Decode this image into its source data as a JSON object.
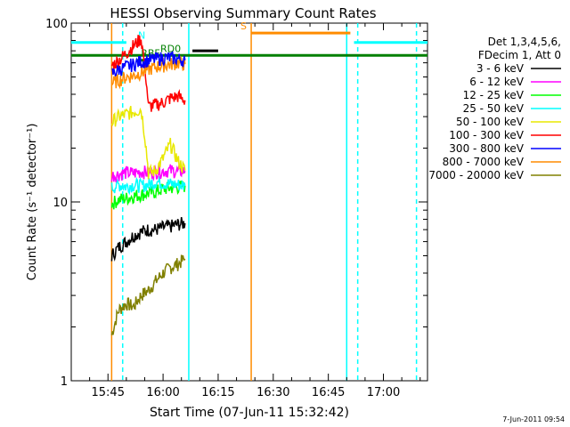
{
  "chart_data": {
    "type": "line",
    "title": "HESSI Observing Summary Count Rates",
    "xlabel": "Start Time (07-Jun-11 15:32:42)",
    "ylabel": "Count Rate (s⁻¹ detector⁻¹)",
    "yscale": "log",
    "ylim": [
      1,
      100
    ],
    "xlim": [
      "15:35",
      "17:12"
    ],
    "x_ticks": [
      "15:45",
      "16:00",
      "16:15",
      "16:30",
      "16:45",
      "17:00"
    ],
    "y_ticks": [
      "1",
      "10",
      "100"
    ],
    "grid": false,
    "legend_position": "right",
    "legend": {
      "header1": "Det 1,3,4,5,6,",
      "header2": "FDecim 1, Att 0",
      "entries": [
        {
          "label": "3 - 6 keV",
          "color": "#000000"
        },
        {
          "label": "6 - 12 keV",
          "color": "#ff00ff"
        },
        {
          "label": "12 - 25 keV",
          "color": "#00ff00"
        },
        {
          "label": "25 - 50 keV",
          "color": "#00ffff"
        },
        {
          "label": "50 - 100 keV",
          "color": "#e8e800"
        },
        {
          "label": "100 - 300 keV",
          "color": "#ff0000"
        },
        {
          "label": "300 - 800 keV",
          "color": "#0000ff"
        },
        {
          "label": "800 - 7000 keV",
          "color": "#ff8c00"
        },
        {
          "label": "7000 - 20000 keV",
          "color": "#808000"
        }
      ]
    },
    "series": [
      {
        "name": "7000 - 20000 keV",
        "color": "#808000",
        "x": [
          "15:46",
          "15:48",
          "15:50",
          "15:52",
          "15:54",
          "15:56",
          "15:58",
          "16:00",
          "16:02",
          "16:04",
          "16:06"
        ],
        "y": [
          1.8,
          2.5,
          2.7,
          2.6,
          3.0,
          3.2,
          3.6,
          4.0,
          4.3,
          4.5,
          4.8
        ]
      },
      {
        "name": "3 - 6 keV",
        "color": "#000000",
        "x": [
          "15:46",
          "15:48",
          "15:50",
          "15:52",
          "15:54",
          "15:56",
          "15:58",
          "16:00",
          "16:02",
          "16:04",
          "16:06"
        ],
        "y": [
          5.0,
          5.6,
          6.0,
          6.5,
          6.8,
          7.0,
          7.0,
          7.2,
          7.3,
          7.5,
          7.6
        ]
      },
      {
        "name": "12 - 25 keV",
        "color": "#00ff00",
        "x": [
          "15:46",
          "15:48",
          "15:50",
          "15:52",
          "15:54",
          "15:56",
          "15:58",
          "16:00",
          "16:02",
          "16:04",
          "16:06"
        ],
        "y": [
          9.8,
          10.3,
          10.5,
          10.8,
          11.0,
          11.2,
          11.4,
          11.8,
          12.0,
          12.1,
          12.3
        ]
      },
      {
        "name": "25 - 50 keV",
        "color": "#00ffff",
        "x": [
          "15:46",
          "15:48",
          "15:50",
          "15:52",
          "15:54",
          "15:56",
          "15:58",
          "16:00",
          "16:02",
          "16:04",
          "16:06"
        ],
        "y": [
          12.0,
          12.5,
          12.2,
          12.5,
          12.3,
          12.5,
          13.0,
          12.8,
          12.6,
          12.5,
          12.3
        ]
      },
      {
        "name": "6 - 12 keV",
        "color": "#ff00ff",
        "x": [
          "15:46",
          "15:48",
          "15:50",
          "15:52",
          "15:54",
          "15:56",
          "15:58",
          "16:00",
          "16:02",
          "16:04",
          "16:06"
        ],
        "y": [
          14.0,
          14.3,
          14.6,
          14.5,
          14.8,
          14.6,
          14.8,
          14.9,
          15.0,
          14.8,
          14.9
        ]
      },
      {
        "name": "50 - 100 keV",
        "color": "#e8e800",
        "x": [
          "15:46",
          "15:48",
          "15:50",
          "15:52",
          "15:54",
          "15:56",
          "15:58",
          "16:00",
          "16:02",
          "16:04",
          "16:06"
        ],
        "y": [
          28,
          30,
          31,
          32,
          33,
          14.5,
          15.0,
          17.5,
          21.0,
          17.0,
          15.0
        ]
      },
      {
        "name": "100 - 300 keV",
        "color": "#ff0000",
        "x": [
          "15:46",
          "15:48",
          "15:50",
          "15:52",
          "15:54",
          "15:56",
          "15:58",
          "16:00",
          "16:02",
          "16:04",
          "16:06"
        ],
        "y": [
          58,
          62,
          68,
          75,
          82,
          34,
          35,
          36,
          38,
          39,
          37
        ]
      },
      {
        "name": "800 - 7000 keV",
        "color": "#ff8c00",
        "x": [
          "15:46",
          "15:48",
          "15:50",
          "15:52",
          "15:54",
          "15:56",
          "15:58",
          "16:00",
          "16:02",
          "16:04",
          "16:06"
        ],
        "y": [
          46,
          48,
          50,
          51,
          53,
          55,
          57,
          58,
          59,
          60,
          59
        ]
      },
      {
        "name": "300 - 800 keV",
        "color": "#0000ff",
        "x": [
          "15:46",
          "15:48",
          "15:50",
          "15:52",
          "15:54",
          "15:56",
          "15:58",
          "16:00",
          "16:02",
          "16:04",
          "16:06"
        ],
        "y": [
          52,
          55,
          57,
          59,
          61,
          62,
          63,
          64,
          64,
          63,
          62
        ]
      }
    ],
    "flags": [
      {
        "label": "RD0",
        "color": "#008000",
        "x_start": "15:35",
        "x_end": "17:12",
        "level": 66
      },
      {
        "label": "RBF",
        "color": "#008000",
        "x_start": "15:53",
        "x_end": "15:55",
        "level": 62
      },
      {
        "label": "N",
        "color": "#00ffff",
        "x_start": "15:35",
        "x_end": "15:50",
        "level": 78
      },
      {
        "label": "",
        "color": "#00ffff",
        "x_start": "16:52",
        "x_end": "17:12",
        "level": 78
      },
      {
        "label": "S",
        "color": "#ff8c00",
        "x_start": "16:24",
        "x_end": "16:51",
        "level": 88
      },
      {
        "label": "",
        "color": "#000000",
        "x_start": "16:08",
        "x_end": "16:15",
        "level": 70
      }
    ],
    "vertical_markers": [
      {
        "x": "15:46",
        "color": "#ff8c00",
        "style": "solid"
      },
      {
        "x": "15:49",
        "color": "#00ffff",
        "style": "dashed"
      },
      {
        "x": "16:07",
        "color": "#00ffff",
        "style": "solid"
      },
      {
        "x": "16:24",
        "color": "#ff8c00",
        "style": "solid"
      },
      {
        "x": "16:50",
        "color": "#00ffff",
        "style": "solid"
      },
      {
        "x": "16:53",
        "color": "#00ffff",
        "style": "dashed"
      },
      {
        "x": "17:09",
        "color": "#00ffff",
        "style": "dashed"
      }
    ]
  },
  "footer": {
    "timestamp": "7-Jun-2011 09:54"
  }
}
